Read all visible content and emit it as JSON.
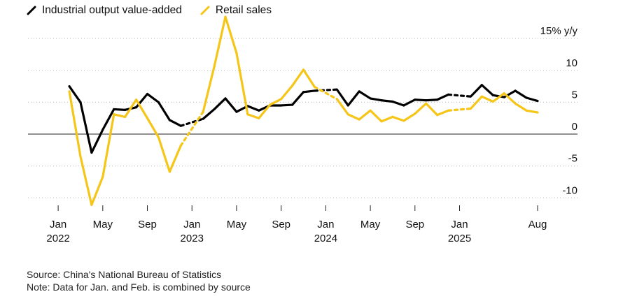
{
  "legend": {
    "series_1": "Industrial output value-added",
    "series_2": "Retail sales"
  },
  "footnote": {
    "source": "Source: China's National Bureau of Statistics",
    "note": "Note: Data for Jan. and Feb. is combined by source"
  },
  "chart_data": {
    "type": "line",
    "y_unit_label": "15% y/y",
    "ylim": [
      -11.5,
      16
    ],
    "y_ticks": [
      {
        "value": 15,
        "label": "15% y/y"
      },
      {
        "value": 10,
        "label": "10"
      },
      {
        "value": 5,
        "label": "5"
      },
      {
        "value": 0,
        "label": "0"
      },
      {
        "value": -5,
        "label": "-5"
      },
      {
        "value": -10,
        "label": "-10"
      }
    ],
    "x_ticks": [
      {
        "date": "2022-01",
        "label": "Jan",
        "year": "2022"
      },
      {
        "date": "2022-05",
        "label": "May",
        "year": ""
      },
      {
        "date": "2022-09",
        "label": "Sep",
        "year": ""
      },
      {
        "date": "2023-01",
        "label": "Jan",
        "year": "2023"
      },
      {
        "date": "2023-05",
        "label": "May",
        "year": ""
      },
      {
        "date": "2023-09",
        "label": "Sep",
        "year": ""
      },
      {
        "date": "2024-01",
        "label": "Jan",
        "year": "2024"
      },
      {
        "date": "2024-05",
        "label": "May",
        "year": ""
      },
      {
        "date": "2024-09",
        "label": "Sep",
        "year": ""
      },
      {
        "date": "2025-01",
        "label": "Jan",
        "year": "2025"
      },
      {
        "date": "2025-08",
        "label": "Aug",
        "year": ""
      }
    ],
    "x_start": "2022-01",
    "x_end": "2025-08",
    "grid": "horizontal dotted",
    "zero_line": true,
    "series": [
      {
        "name": "Industrial output value-added",
        "color": "#000000",
        "dashed_segments": [
          "2022-12 to 2023-02",
          "2024-01 to 2024-02",
          "2024-12 to 2025-02"
        ],
        "points": [
          [
            "2022-02",
            7.5
          ],
          [
            "2022-03",
            5.0
          ],
          [
            "2022-04",
            -2.9
          ],
          [
            "2022-05",
            0.7
          ],
          [
            "2022-06",
            3.9
          ],
          [
            "2022-07",
            3.8
          ],
          [
            "2022-08",
            4.2
          ],
          [
            "2022-09",
            6.3
          ],
          [
            "2022-10",
            5.0
          ],
          [
            "2022-11",
            2.2
          ],
          [
            "2022-12",
            1.3
          ],
          [
            "2023-02",
            2.4
          ],
          [
            "2023-03",
            3.9
          ],
          [
            "2023-04",
            5.6
          ],
          [
            "2023-05",
            3.5
          ],
          [
            "2023-06",
            4.4
          ],
          [
            "2023-07",
            3.7
          ],
          [
            "2023-08",
            4.5
          ],
          [
            "2023-09",
            4.5
          ],
          [
            "2023-10",
            4.6
          ],
          [
            "2023-11",
            6.6
          ],
          [
            "2023-12",
            6.8
          ],
          [
            "2024-02",
            7.0
          ],
          [
            "2024-03",
            4.5
          ],
          [
            "2024-04",
            6.7
          ],
          [
            "2024-05",
            5.6
          ],
          [
            "2024-06",
            5.3
          ],
          [
            "2024-07",
            5.1
          ],
          [
            "2024-08",
            4.5
          ],
          [
            "2024-09",
            5.4
          ],
          [
            "2024-10",
            5.3
          ],
          [
            "2024-11",
            5.4
          ],
          [
            "2024-12",
            6.2
          ],
          [
            "2025-02",
            5.9
          ],
          [
            "2025-03",
            7.7
          ],
          [
            "2025-04",
            6.1
          ],
          [
            "2025-05",
            5.8
          ],
          [
            "2025-06",
            6.8
          ],
          [
            "2025-07",
            5.7
          ],
          [
            "2025-08",
            5.2
          ]
        ]
      },
      {
        "name": "Retail sales",
        "color": "#f5c518",
        "dashed_segments": [
          "2022-12 to 2023-02",
          "2024-01 to 2024-02",
          "2024-12 to 2025-02"
        ],
        "points": [
          [
            "2022-02",
            6.7
          ],
          [
            "2022-03",
            -3.5
          ],
          [
            "2022-04",
            -11.1
          ],
          [
            "2022-05",
            -6.7
          ],
          [
            "2022-06",
            3.1
          ],
          [
            "2022-07",
            2.7
          ],
          [
            "2022-08",
            5.4
          ],
          [
            "2022-09",
            2.5
          ],
          [
            "2022-10",
            -0.5
          ],
          [
            "2022-11",
            -5.9
          ],
          [
            "2022-12",
            -1.8
          ],
          [
            "2023-02",
            3.5
          ],
          [
            "2023-03",
            10.6
          ],
          [
            "2023-04",
            18.4
          ],
          [
            "2023-05",
            12.7
          ],
          [
            "2023-06",
            3.1
          ],
          [
            "2023-07",
            2.5
          ],
          [
            "2023-08",
            4.6
          ],
          [
            "2023-09",
            5.5
          ],
          [
            "2023-10",
            7.6
          ],
          [
            "2023-11",
            10.1
          ],
          [
            "2023-12",
            7.4
          ],
          [
            "2024-02",
            5.5
          ],
          [
            "2024-03",
            3.1
          ],
          [
            "2024-04",
            2.3
          ],
          [
            "2024-05",
            3.7
          ],
          [
            "2024-06",
            2.0
          ],
          [
            "2024-07",
            2.7
          ],
          [
            "2024-08",
            2.1
          ],
          [
            "2024-09",
            3.2
          ],
          [
            "2024-10",
            4.8
          ],
          [
            "2024-11",
            3.0
          ],
          [
            "2024-12",
            3.7
          ],
          [
            "2025-02",
            4.0
          ],
          [
            "2025-03",
            5.9
          ],
          [
            "2025-04",
            5.1
          ],
          [
            "2025-05",
            6.4
          ],
          [
            "2025-06",
            4.8
          ],
          [
            "2025-07",
            3.7
          ],
          [
            "2025-08",
            3.4
          ]
        ]
      }
    ]
  }
}
